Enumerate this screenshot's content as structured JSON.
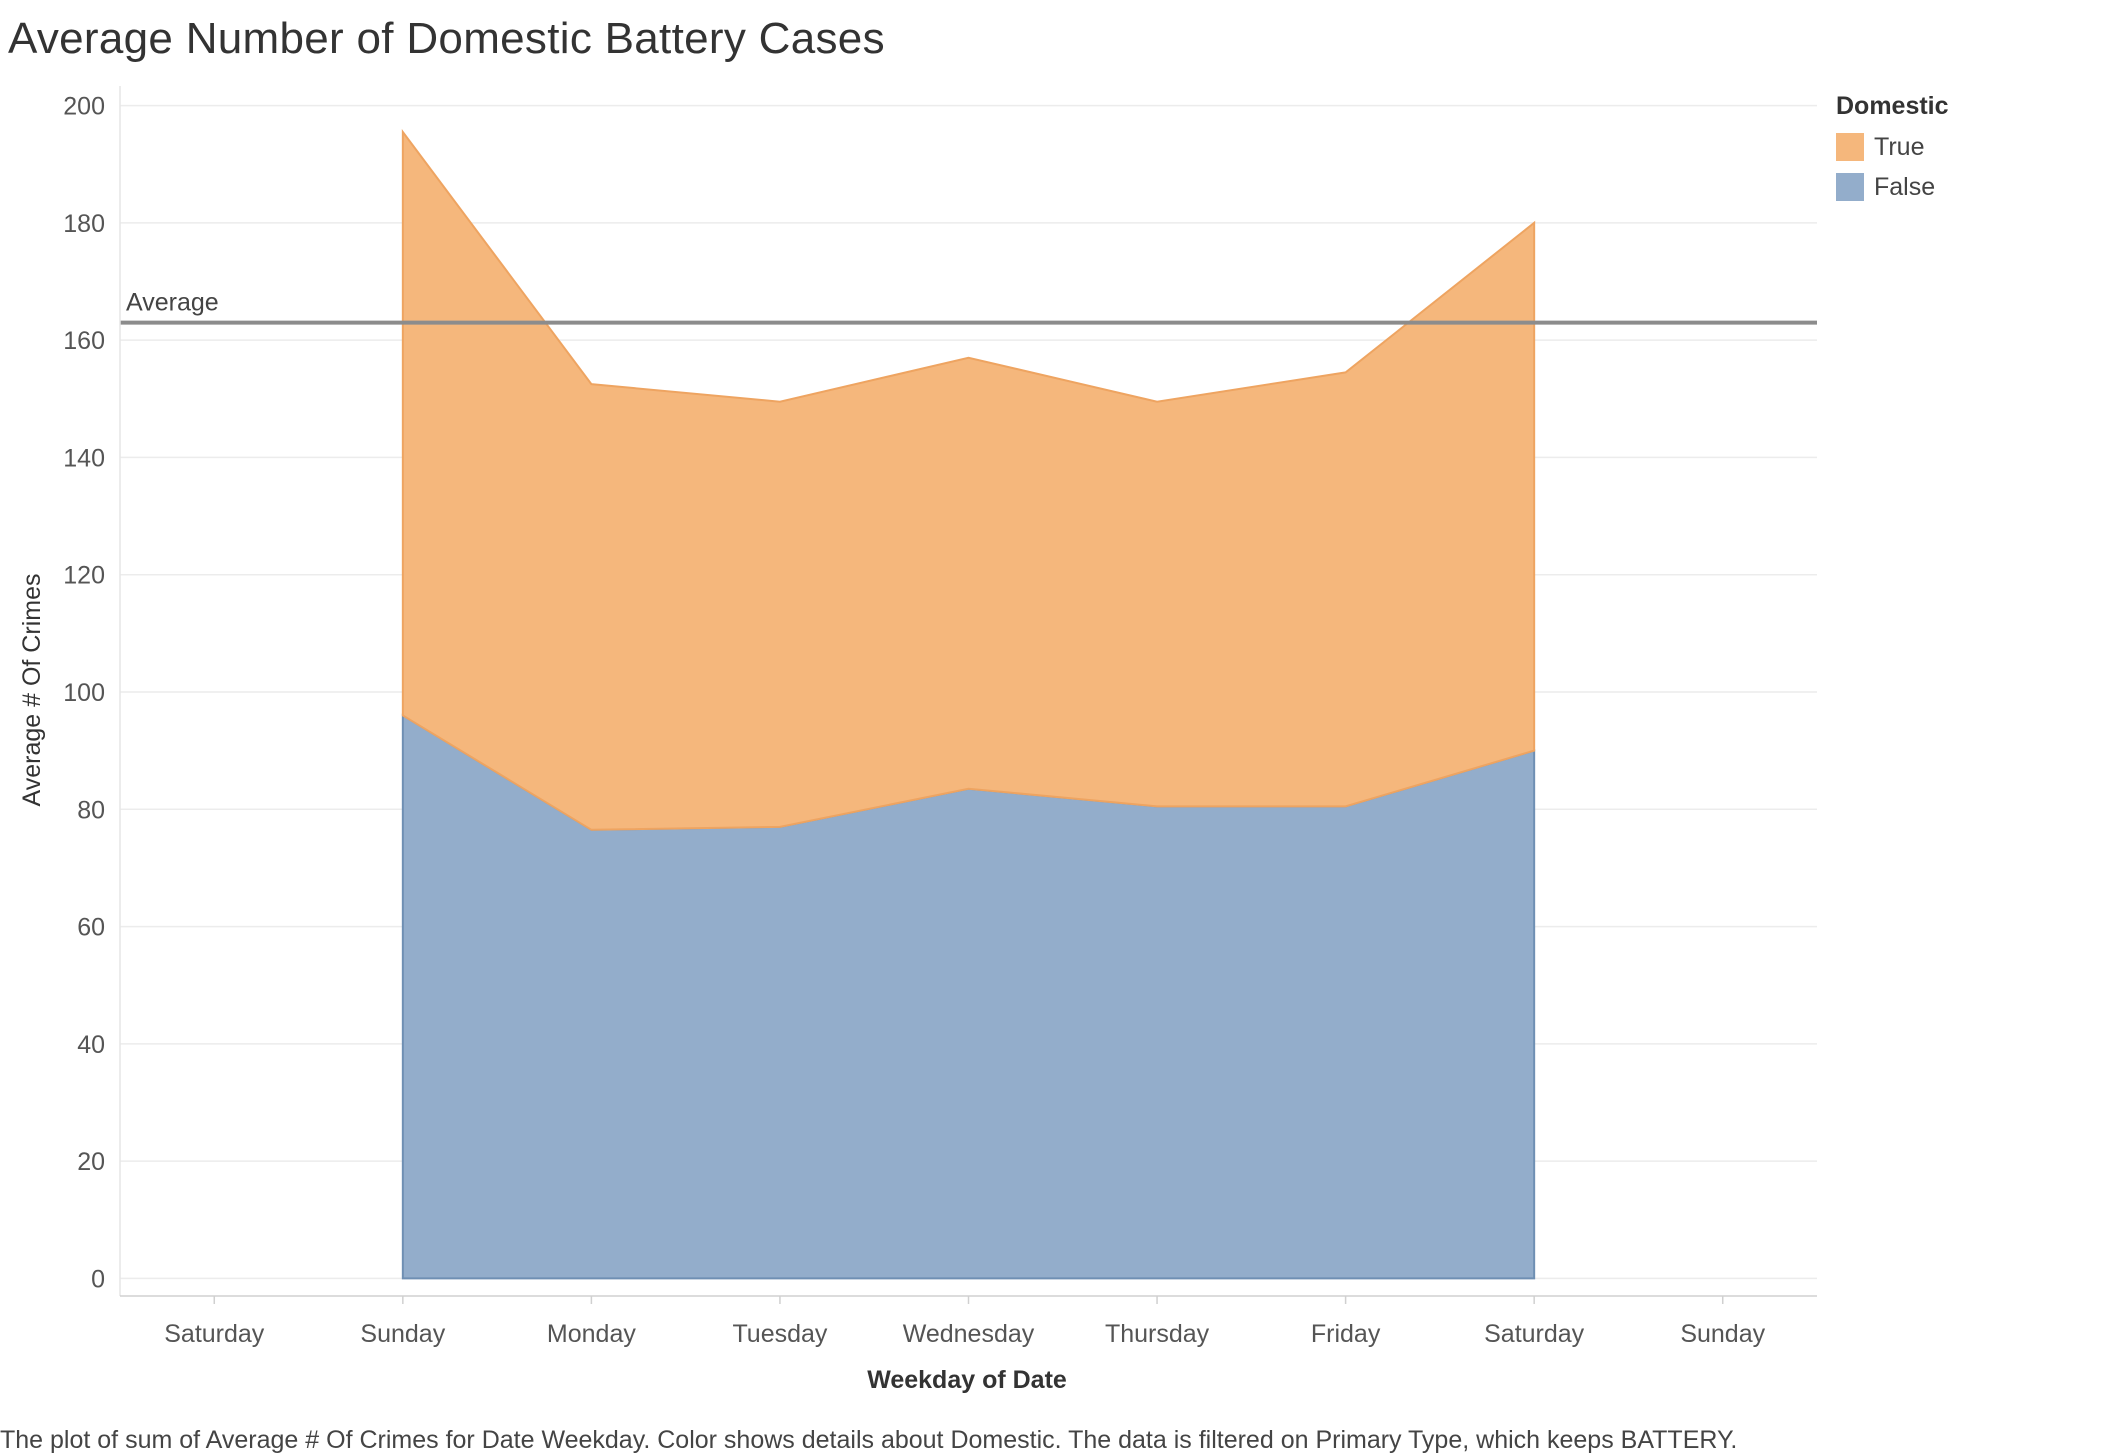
{
  "title": "Average Number of Domestic Battery Cases",
  "caption": "The plot of sum of Average # Of Crimes for Date Weekday.  Color shows details about Domestic. The data is filtered on Primary Type, which keeps BATTERY.",
  "legend": {
    "title": "Domestic",
    "items": [
      {
        "label": "True",
        "color": "#f5b77c"
      },
      {
        "label": "False",
        "color": "#93adcb"
      }
    ]
  },
  "chart_data": {
    "type": "area",
    "stacked": true,
    "title": "Average Number of Domestic Battery Cases",
    "xlabel": "Weekday of Date",
    "ylabel": "Average # Of Crimes",
    "x_ticks": [
      "Saturday",
      "Sunday",
      "Monday",
      "Tuesday",
      "Wednesday",
      "Thursday",
      "Friday",
      "Saturday",
      "Sunday"
    ],
    "categories": [
      "Sunday",
      "Monday",
      "Tuesday",
      "Wednesday",
      "Thursday",
      "Friday",
      "Saturday"
    ],
    "y_ticks": [
      0,
      20,
      40,
      60,
      80,
      100,
      120,
      140,
      160,
      180,
      200
    ],
    "ylim": [
      -3,
      203
    ],
    "grid": true,
    "legend_position": "top-right",
    "series": [
      {
        "name": "False",
        "color": "#93adcb",
        "values": [
          96,
          76.5,
          77,
          83.5,
          80.5,
          80.5,
          90
        ]
      },
      {
        "name": "True",
        "color": "#f5b77c",
        "values": [
          99.5,
          76,
          72.5,
          73.5,
          69,
          74,
          90
        ]
      }
    ],
    "reference_line": {
      "label": "Average",
      "value": 163
    }
  }
}
